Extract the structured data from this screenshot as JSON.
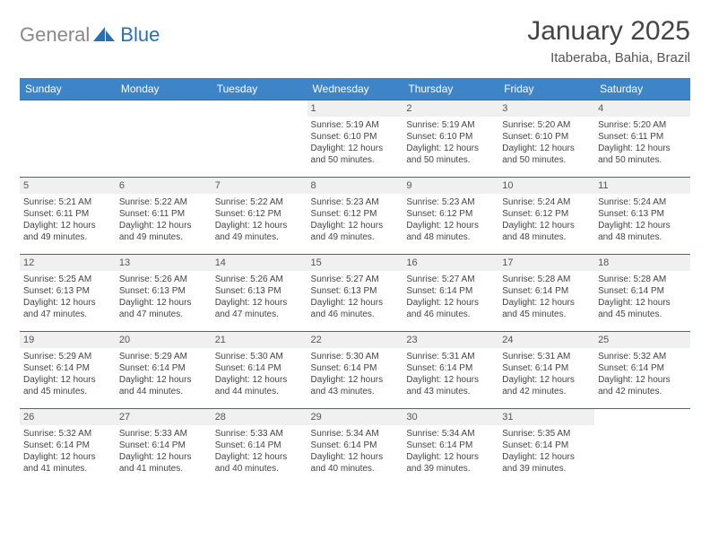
{
  "logo": {
    "gray_text": "General",
    "blue_text": "Blue"
  },
  "header": {
    "title": "January 2025",
    "subtitle": "Itaberaba, Bahia, Brazil"
  },
  "colors": {
    "header_bg": "#3d85c6",
    "row_border": "#2b6fb3",
    "daynum_bg": "#f0f0f0",
    "logo_gray": "#888888",
    "logo_blue": "#2b6fb3"
  },
  "weekdays": [
    "Sunday",
    "Monday",
    "Tuesday",
    "Wednesday",
    "Thursday",
    "Friday",
    "Saturday"
  ],
  "weeks": [
    [
      {
        "blank": true
      },
      {
        "blank": true
      },
      {
        "blank": true
      },
      {
        "day": "1",
        "sunrise": "Sunrise: 5:19 AM",
        "sunset": "Sunset: 6:10 PM",
        "daylight": "Daylight: 12 hours and 50 minutes."
      },
      {
        "day": "2",
        "sunrise": "Sunrise: 5:19 AM",
        "sunset": "Sunset: 6:10 PM",
        "daylight": "Daylight: 12 hours and 50 minutes."
      },
      {
        "day": "3",
        "sunrise": "Sunrise: 5:20 AM",
        "sunset": "Sunset: 6:10 PM",
        "daylight": "Daylight: 12 hours and 50 minutes."
      },
      {
        "day": "4",
        "sunrise": "Sunrise: 5:20 AM",
        "sunset": "Sunset: 6:11 PM",
        "daylight": "Daylight: 12 hours and 50 minutes."
      }
    ],
    [
      {
        "day": "5",
        "sunrise": "Sunrise: 5:21 AM",
        "sunset": "Sunset: 6:11 PM",
        "daylight": "Daylight: 12 hours and 49 minutes."
      },
      {
        "day": "6",
        "sunrise": "Sunrise: 5:22 AM",
        "sunset": "Sunset: 6:11 PM",
        "daylight": "Daylight: 12 hours and 49 minutes."
      },
      {
        "day": "7",
        "sunrise": "Sunrise: 5:22 AM",
        "sunset": "Sunset: 6:12 PM",
        "daylight": "Daylight: 12 hours and 49 minutes."
      },
      {
        "day": "8",
        "sunrise": "Sunrise: 5:23 AM",
        "sunset": "Sunset: 6:12 PM",
        "daylight": "Daylight: 12 hours and 49 minutes."
      },
      {
        "day": "9",
        "sunrise": "Sunrise: 5:23 AM",
        "sunset": "Sunset: 6:12 PM",
        "daylight": "Daylight: 12 hours and 48 minutes."
      },
      {
        "day": "10",
        "sunrise": "Sunrise: 5:24 AM",
        "sunset": "Sunset: 6:12 PM",
        "daylight": "Daylight: 12 hours and 48 minutes."
      },
      {
        "day": "11",
        "sunrise": "Sunrise: 5:24 AM",
        "sunset": "Sunset: 6:13 PM",
        "daylight": "Daylight: 12 hours and 48 minutes."
      }
    ],
    [
      {
        "day": "12",
        "sunrise": "Sunrise: 5:25 AM",
        "sunset": "Sunset: 6:13 PM",
        "daylight": "Daylight: 12 hours and 47 minutes."
      },
      {
        "day": "13",
        "sunrise": "Sunrise: 5:26 AM",
        "sunset": "Sunset: 6:13 PM",
        "daylight": "Daylight: 12 hours and 47 minutes."
      },
      {
        "day": "14",
        "sunrise": "Sunrise: 5:26 AM",
        "sunset": "Sunset: 6:13 PM",
        "daylight": "Daylight: 12 hours and 47 minutes."
      },
      {
        "day": "15",
        "sunrise": "Sunrise: 5:27 AM",
        "sunset": "Sunset: 6:13 PM",
        "daylight": "Daylight: 12 hours and 46 minutes."
      },
      {
        "day": "16",
        "sunrise": "Sunrise: 5:27 AM",
        "sunset": "Sunset: 6:14 PM",
        "daylight": "Daylight: 12 hours and 46 minutes."
      },
      {
        "day": "17",
        "sunrise": "Sunrise: 5:28 AM",
        "sunset": "Sunset: 6:14 PM",
        "daylight": "Daylight: 12 hours and 45 minutes."
      },
      {
        "day": "18",
        "sunrise": "Sunrise: 5:28 AM",
        "sunset": "Sunset: 6:14 PM",
        "daylight": "Daylight: 12 hours and 45 minutes."
      }
    ],
    [
      {
        "day": "19",
        "sunrise": "Sunrise: 5:29 AM",
        "sunset": "Sunset: 6:14 PM",
        "daylight": "Daylight: 12 hours and 45 minutes."
      },
      {
        "day": "20",
        "sunrise": "Sunrise: 5:29 AM",
        "sunset": "Sunset: 6:14 PM",
        "daylight": "Daylight: 12 hours and 44 minutes."
      },
      {
        "day": "21",
        "sunrise": "Sunrise: 5:30 AM",
        "sunset": "Sunset: 6:14 PM",
        "daylight": "Daylight: 12 hours and 44 minutes."
      },
      {
        "day": "22",
        "sunrise": "Sunrise: 5:30 AM",
        "sunset": "Sunset: 6:14 PM",
        "daylight": "Daylight: 12 hours and 43 minutes."
      },
      {
        "day": "23",
        "sunrise": "Sunrise: 5:31 AM",
        "sunset": "Sunset: 6:14 PM",
        "daylight": "Daylight: 12 hours and 43 minutes."
      },
      {
        "day": "24",
        "sunrise": "Sunrise: 5:31 AM",
        "sunset": "Sunset: 6:14 PM",
        "daylight": "Daylight: 12 hours and 42 minutes."
      },
      {
        "day": "25",
        "sunrise": "Sunrise: 5:32 AM",
        "sunset": "Sunset: 6:14 PM",
        "daylight": "Daylight: 12 hours and 42 minutes."
      }
    ],
    [
      {
        "day": "26",
        "sunrise": "Sunrise: 5:32 AM",
        "sunset": "Sunset: 6:14 PM",
        "daylight": "Daylight: 12 hours and 41 minutes."
      },
      {
        "day": "27",
        "sunrise": "Sunrise: 5:33 AM",
        "sunset": "Sunset: 6:14 PM",
        "daylight": "Daylight: 12 hours and 41 minutes."
      },
      {
        "day": "28",
        "sunrise": "Sunrise: 5:33 AM",
        "sunset": "Sunset: 6:14 PM",
        "daylight": "Daylight: 12 hours and 40 minutes."
      },
      {
        "day": "29",
        "sunrise": "Sunrise: 5:34 AM",
        "sunset": "Sunset: 6:14 PM",
        "daylight": "Daylight: 12 hours and 40 minutes."
      },
      {
        "day": "30",
        "sunrise": "Sunrise: 5:34 AM",
        "sunset": "Sunset: 6:14 PM",
        "daylight": "Daylight: 12 hours and 39 minutes."
      },
      {
        "day": "31",
        "sunrise": "Sunrise: 5:35 AM",
        "sunset": "Sunset: 6:14 PM",
        "daylight": "Daylight: 12 hours and 39 minutes."
      },
      {
        "blank": true
      }
    ]
  ]
}
